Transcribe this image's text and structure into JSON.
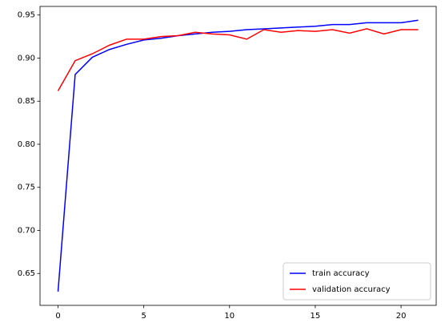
{
  "chart_data": {
    "type": "line",
    "x": [
      0,
      1,
      2,
      3,
      4,
      5,
      6,
      7,
      8,
      9,
      10,
      11,
      12,
      13,
      14,
      15,
      16,
      17,
      18,
      19,
      20,
      21
    ],
    "series": [
      {
        "name": "train accuracy",
        "color": "#0000ff",
        "values": [
          0.629,
          0.881,
          0.901,
          0.91,
          0.916,
          0.921,
          0.923,
          0.926,
          0.928,
          0.93,
          0.931,
          0.933,
          0.934,
          0.935,
          0.936,
          0.937,
          0.939,
          0.939,
          0.941,
          0.941,
          0.941,
          0.944
        ]
      },
      {
        "name": "validation accuracy",
        "color": "#ff0000",
        "values": [
          0.862,
          0.897,
          0.905,
          0.915,
          0.922,
          0.922,
          0.925,
          0.926,
          0.93,
          0.928,
          0.927,
          0.922,
          0.933,
          0.93,
          0.932,
          0.931,
          0.933,
          0.929,
          0.934,
          0.928,
          0.933,
          0.933
        ]
      }
    ],
    "xlim": [
      -1.05,
      22.05
    ],
    "xticks": [
      0,
      5,
      10,
      15,
      20
    ],
    "ylim": [
      0.613,
      0.96
    ],
    "yticks": [
      {
        "value": 0.65,
        "label": "0.65"
      },
      {
        "value": 0.7,
        "label": "0.70"
      },
      {
        "value": 0.75,
        "label": "0.75"
      },
      {
        "value": 0.8,
        "label": "0.80"
      },
      {
        "value": 0.85,
        "label": "0.85"
      },
      {
        "value": 0.9,
        "label": "0.90"
      },
      {
        "value": 0.95,
        "label": "0.95"
      }
    ],
    "legend": "lower right"
  }
}
